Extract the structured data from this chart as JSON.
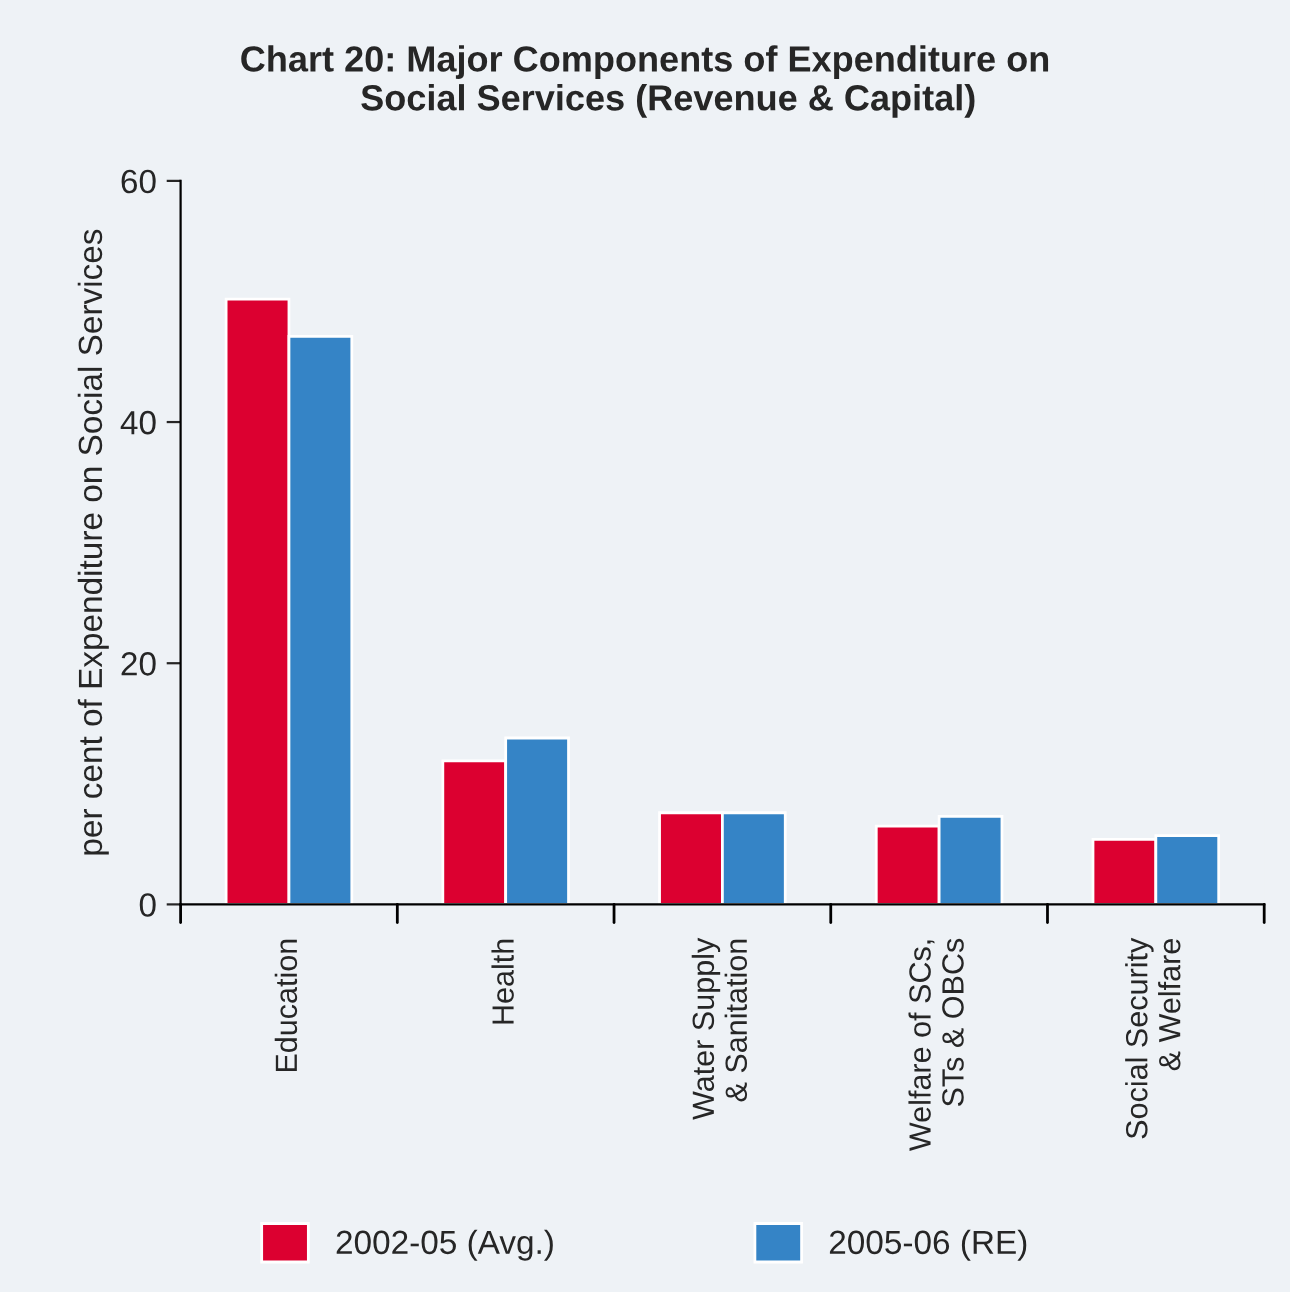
{
  "chart_data": {
    "type": "bar",
    "title": "Chart 20: Major Components of Expenditure on\n            Social Services (Revenue & Capital)",
    "ylabel": "per cent of Expenditure on Social Services",
    "categories": [
      "Education",
      "Health",
      "Water Supply\n& Sanitation",
      "Welfare of SCs,\nSTs & OBCs",
      "Social Security\n& Welfare"
    ],
    "series": [
      {
        "name": "2002-05 (Avg.)",
        "color": "#dc0030",
        "values": [
          50.2,
          11.9,
          7.6,
          6.5,
          5.4
        ]
      },
      {
        "name": "2005-06 (RE)",
        "color": "#3584c6",
        "values": [
          47.1,
          13.8,
          7.6,
          7.3,
          5.7
        ]
      }
    ],
    "ylim": [
      0,
      60
    ],
    "yticks": [
      0,
      20,
      40,
      60
    ],
    "grid": false,
    "legend": "bottom"
  }
}
